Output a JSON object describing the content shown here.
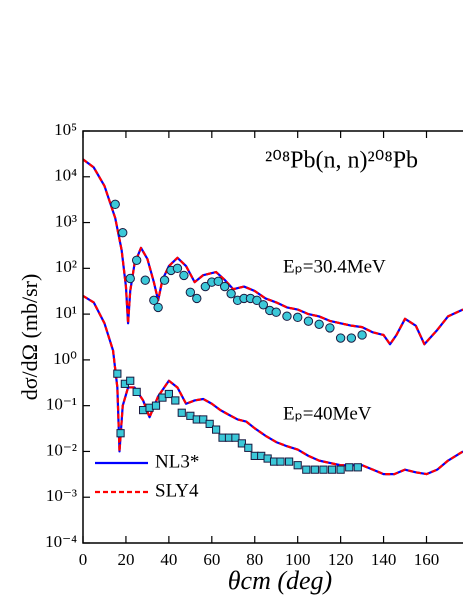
{
  "chart_data": {
    "type": "line",
    "title": "²⁰⁸Pb(n, n)²⁰⁸Pb",
    "annotations": [
      "Eₚ=30.4MeV",
      "Eₚ=40MeV"
    ],
    "x_label": "θcm (deg)",
    "y_label": "dσ/dΩ (mb/sr)",
    "log_y": true,
    "legend": "lower left",
    "xlim": [
      0,
      177
    ],
    "xticks": [
      0,
      20,
      40,
      60,
      80,
      100,
      120,
      140,
      160
    ],
    "ylim": [
      0.0001,
      100000
    ],
    "yticks": [
      {
        "value": 0.0001,
        "label": "10⁻⁴"
      },
      {
        "value": 0.001,
        "label": "10⁻³"
      },
      {
        "value": 0.01,
        "label": "10⁻²"
      },
      {
        "value": 0.1,
        "label": "10⁻¹"
      },
      {
        "value": 1,
        "label": "10⁰"
      },
      {
        "value": 10,
        "label": "10¹"
      },
      {
        "value": 100,
        "label": "10²"
      },
      {
        "value": 1000,
        "label": "10³"
      },
      {
        "value": 10000,
        "label": "10⁴"
      },
      {
        "value": 100000,
        "label": "10⁵"
      }
    ],
    "series": [
      {
        "name": "NL3*",
        "color": "#0000ff",
        "dash": false,
        "x": [
          0,
          5,
          10,
          15,
          18,
          20,
          21,
          22,
          24,
          27,
          30,
          33,
          35,
          37,
          40,
          44,
          48,
          52,
          56,
          62,
          66,
          70,
          75,
          80,
          85,
          90,
          95,
          100,
          105,
          110,
          115,
          120,
          125,
          130,
          135,
          140,
          143,
          146,
          150,
          155,
          159,
          165,
          170,
          177
        ],
        "values": [
          24000,
          16000,
          6300,
          1260,
          250,
          40,
          6.3,
          32,
          126,
          280,
          160,
          50,
          20,
          56,
          112,
          170,
          112,
          50,
          71,
          83,
          56,
          35,
          40,
          32,
          22,
          18,
          14,
          12.6,
          10,
          8.9,
          7.1,
          6.3,
          5.6,
          5.2,
          4,
          3.5,
          2.2,
          3.5,
          7.9,
          5.6,
          2.2,
          4.5,
          8.9,
          12.6
        ]
      },
      {
        "name": "SLY4",
        "color": "#ff0000",
        "dash": true,
        "x": [
          0,
          5,
          10,
          15,
          18,
          20,
          21,
          22,
          24,
          27,
          30,
          33,
          35,
          37,
          40,
          44,
          48,
          52,
          56,
          62,
          66,
          70,
          75,
          80,
          85,
          90,
          95,
          100,
          105,
          110,
          115,
          120,
          125,
          130,
          135,
          140,
          143,
          146,
          150,
          155,
          159,
          165,
          170,
          177
        ],
        "values": [
          24000,
          16000,
          6300,
          1260,
          250,
          40,
          6.3,
          32,
          126,
          280,
          160,
          50,
          20,
          56,
          112,
          170,
          112,
          50,
          71,
          83,
          56,
          35,
          40,
          32,
          22,
          18,
          14,
          12.6,
          10,
          8.9,
          7.1,
          6.3,
          5.6,
          5.2,
          4,
          3.5,
          2.2,
          3.5,
          7.9,
          5.6,
          2.2,
          4.5,
          8.9,
          12.6
        ]
      },
      {
        "color": "#0000ff",
        "dash": false,
        "x": [
          0,
          5,
          10,
          14,
          16,
          17,
          18.5,
          21,
          24,
          28,
          31,
          35,
          40,
          44,
          48,
          52,
          56,
          60,
          64,
          68,
          72,
          76,
          80,
          85,
          90,
          95,
          100,
          105,
          110,
          115,
          120,
          125,
          130,
          135,
          140,
          145,
          150,
          155,
          160,
          165,
          170,
          177
        ],
        "values": [
          25,
          18,
          6.3,
          1.6,
          0.25,
          0.01,
          0.1,
          0.25,
          0.25,
          0.13,
          0.056,
          0.16,
          0.35,
          0.25,
          0.11,
          0.13,
          0.14,
          0.11,
          0.08,
          0.063,
          0.05,
          0.045,
          0.032,
          0.022,
          0.016,
          0.013,
          0.011,
          0.008,
          0.0063,
          0.0056,
          0.005,
          0.005,
          0.005,
          0.004,
          0.0032,
          0.0032,
          0.004,
          0.0035,
          0.0032,
          0.004,
          0.0063,
          0.01
        ]
      },
      {
        "color": "#ff0000",
        "dash": true,
        "x": [
          0,
          5,
          10,
          14,
          16,
          17,
          18.5,
          21,
          24,
          28,
          31,
          35,
          40,
          44,
          48,
          52,
          56,
          60,
          64,
          68,
          72,
          76,
          80,
          85,
          90,
          95,
          100,
          105,
          110,
          115,
          120,
          125,
          130,
          135,
          140,
          145,
          150,
          155,
          160,
          165,
          170,
          177
        ],
        "values": [
          25,
          18,
          6.3,
          1.6,
          0.25,
          0.01,
          0.1,
          0.25,
          0.25,
          0.13,
          0.056,
          0.16,
          0.35,
          0.25,
          0.11,
          0.13,
          0.14,
          0.11,
          0.08,
          0.063,
          0.05,
          0.045,
          0.032,
          0.022,
          0.016,
          0.013,
          0.011,
          0.008,
          0.0063,
          0.0056,
          0.005,
          0.005,
          0.005,
          0.004,
          0.0032,
          0.0032,
          0.004,
          0.0035,
          0.0032,
          0.004,
          0.0063,
          0.01
        ]
      },
      {
        "marker": "circle",
        "color": "#3cc8d8",
        "x": [
          15,
          18.5,
          22,
          25,
          29,
          33,
          35,
          38,
          41,
          44,
          47,
          50,
          53,
          57,
          60,
          63,
          66,
          69,
          72,
          75,
          78,
          81,
          84,
          87,
          90,
          95,
          100,
          105,
          110,
          115,
          120,
          125,
          130
        ],
        "values": [
          2500,
          600,
          60,
          150,
          55,
          20,
          14,
          55,
          90,
          100,
          70,
          30,
          22,
          40,
          50,
          52,
          40,
          28,
          20,
          22,
          22,
          20,
          16,
          12,
          11,
          9,
          8.5,
          7,
          6,
          5,
          3,
          3,
          3.5
        ]
      },
      {
        "marker": "square",
        "color": "#3cc8d8",
        "x": [
          16,
          17.5,
          19.5,
          22,
          25,
          28,
          31,
          34,
          37,
          40,
          43,
          46,
          50,
          53,
          56,
          59,
          62,
          65,
          68,
          71,
          74,
          77,
          80,
          83,
          86,
          89,
          92,
          96,
          100,
          104,
          108,
          112,
          116,
          120,
          124,
          128
        ],
        "values": [
          0.5,
          0.025,
          0.3,
          0.35,
          0.2,
          0.08,
          0.09,
          0.1,
          0.15,
          0.18,
          0.13,
          0.07,
          0.06,
          0.05,
          0.05,
          0.04,
          0.03,
          0.02,
          0.02,
          0.02,
          0.015,
          0.012,
          0.008,
          0.008,
          0.007,
          0.006,
          0.006,
          0.006,
          0.005,
          0.004,
          0.004,
          0.004,
          0.004,
          0.004,
          0.0045,
          0.0045
        ]
      }
    ]
  }
}
